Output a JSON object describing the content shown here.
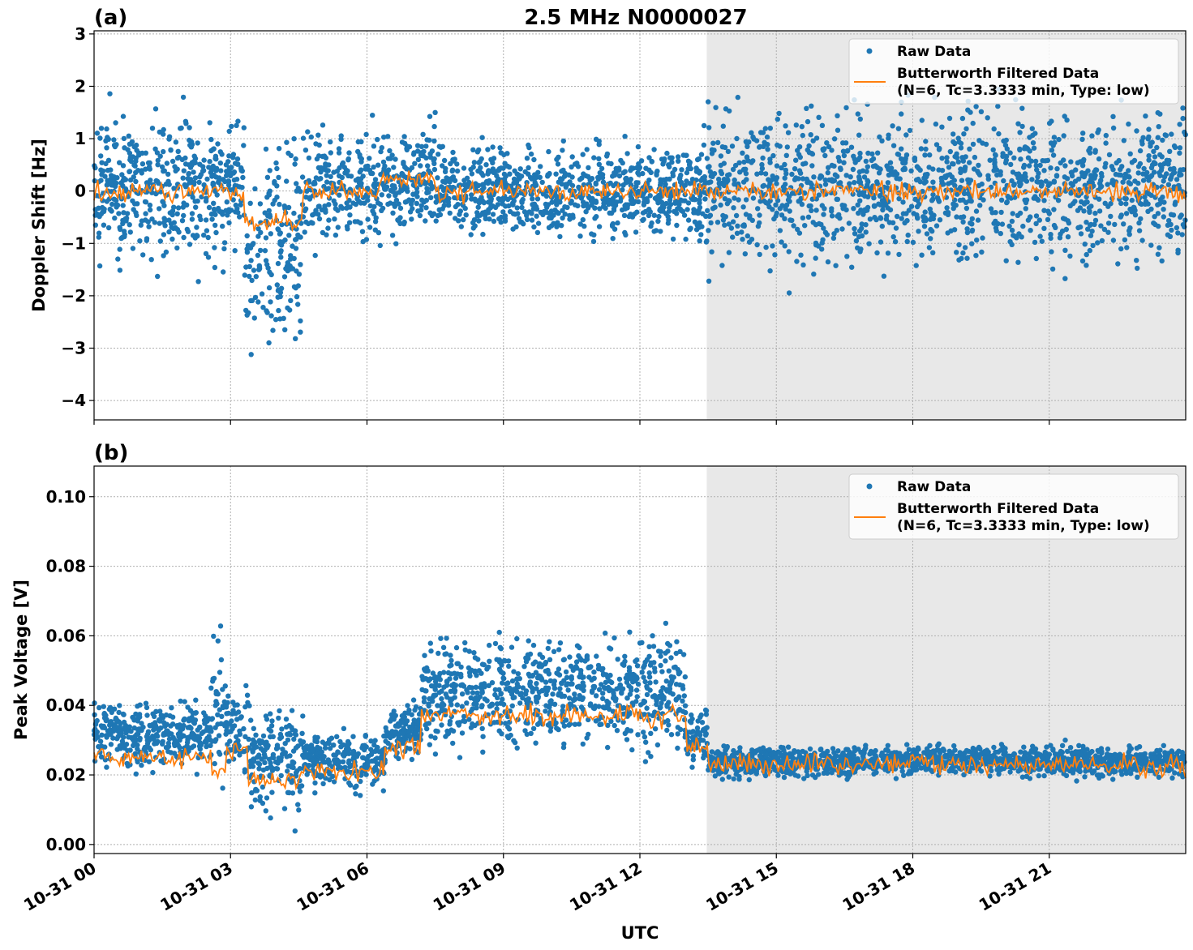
{
  "title": "2.5 MHz N0000027",
  "colors": {
    "raw": "#1f77b4",
    "filtered": "#ff7f0e",
    "shade": "#e8e8e8"
  },
  "chart_data": [
    {
      "type": "scatter",
      "panel_label": "(a)",
      "xlabel": "",
      "ylabel": "Doppler Shift [Hz]",
      "x_unit": "hours UTC on 10-31",
      "xlim": [
        0,
        24
      ],
      "ylim": [
        -4.37,
        3.06
      ],
      "yticks": [
        "3",
        "2",
        "1",
        "0",
        "−1",
        "−2",
        "−3",
        "−4"
      ],
      "ytick_values": [
        3,
        2,
        1,
        0,
        -1,
        -2,
        -3,
        -4
      ],
      "grid": true,
      "legend": {
        "placement": "top-right",
        "entries": [
          "Raw Data",
          "Butterworth Filtered Data",
          "(N=6, Tc=3.3333 min, Type: low)"
        ]
      },
      "shaded_interval_hours": [
        13.47,
        24
      ],
      "segments": [
        {
          "start": 0,
          "end": 3.3,
          "filtered_mean": 0.0,
          "raw_range": [
            -1.8,
            1.9
          ]
        },
        {
          "start": 3.3,
          "end": 4.6,
          "filtered_mean": -0.6,
          "raw_range": [
            -3.9,
            1.4
          ]
        },
        {
          "start": 4.6,
          "end": 6.3,
          "filtered_mean": 0.0,
          "raw_range": [
            -1.5,
            1.6
          ]
        },
        {
          "start": 6.3,
          "end": 7.5,
          "filtered_mean": 0.2,
          "raw_range": [
            -1.1,
            1.5
          ]
        },
        {
          "start": 7.5,
          "end": 13.4,
          "filtered_mean": 0.0,
          "raw_range": [
            -1.2,
            1.2
          ]
        },
        {
          "start": 13.4,
          "end": 24,
          "filtered_mean": 0.0,
          "raw_range": [
            -2.0,
            2.1
          ]
        }
      ]
    },
    {
      "type": "scatter",
      "panel_label": "(b)",
      "xlabel": "UTC",
      "ylabel": "Peak Voltage [V]",
      "x_unit": "hours UTC on 10-31",
      "xlim": [
        0,
        24
      ],
      "ylim": [
        -0.0026,
        0.1088
      ],
      "yticks": [
        "0.10",
        "0.08",
        "0.06",
        "0.04",
        "0.02",
        "0.00"
      ],
      "ytick_values": [
        0.1,
        0.08,
        0.06,
        0.04,
        0.02,
        0.0
      ],
      "xticks": [
        "10-31 00",
        "10-31 03",
        "10-31 06",
        "10-31 09",
        "10-31 12",
        "10-31 15",
        "10-31 18",
        "10-31 21"
      ],
      "xtick_values": [
        0,
        3,
        6,
        9,
        12,
        15,
        18,
        21
      ],
      "grid": true,
      "legend": {
        "placement": "top-right",
        "entries": [
          "Raw Data",
          "Butterworth Filtered Data",
          "(N=6, Tc=3.3333 min, Type: low)"
        ]
      },
      "shaded_interval_hours": [
        13.47,
        24
      ],
      "segments": [
        {
          "start": 0,
          "end": 2.6,
          "filtered_mean": 0.025,
          "raw_range": [
            0.018,
            0.045
          ]
        },
        {
          "start": 2.6,
          "end": 2.9,
          "filtered_mean": 0.02,
          "raw_range": [
            0.007,
            0.07
          ]
        },
        {
          "start": 2.9,
          "end": 3.4,
          "filtered_mean": 0.027,
          "raw_range": [
            0.018,
            0.05
          ]
        },
        {
          "start": 3.4,
          "end": 4.6,
          "filtered_mean": 0.018,
          "raw_range": [
            0.003,
            0.045
          ]
        },
        {
          "start": 4.6,
          "end": 6.4,
          "filtered_mean": 0.021,
          "raw_range": [
            0.013,
            0.035
          ]
        },
        {
          "start": 6.4,
          "end": 7.2,
          "filtered_mean": 0.028,
          "raw_range": [
            0.022,
            0.042
          ]
        },
        {
          "start": 7.2,
          "end": 13.0,
          "filtered_mean": 0.037,
          "raw_range": [
            0.022,
            0.065
          ]
        },
        {
          "start": 13.0,
          "end": 13.5,
          "filtered_mean": 0.028,
          "raw_range": [
            0.02,
            0.04
          ]
        },
        {
          "start": 13.5,
          "end": 24,
          "filtered_mean": 0.023,
          "raw_range": [
            0.018,
            0.03
          ]
        }
      ]
    }
  ]
}
